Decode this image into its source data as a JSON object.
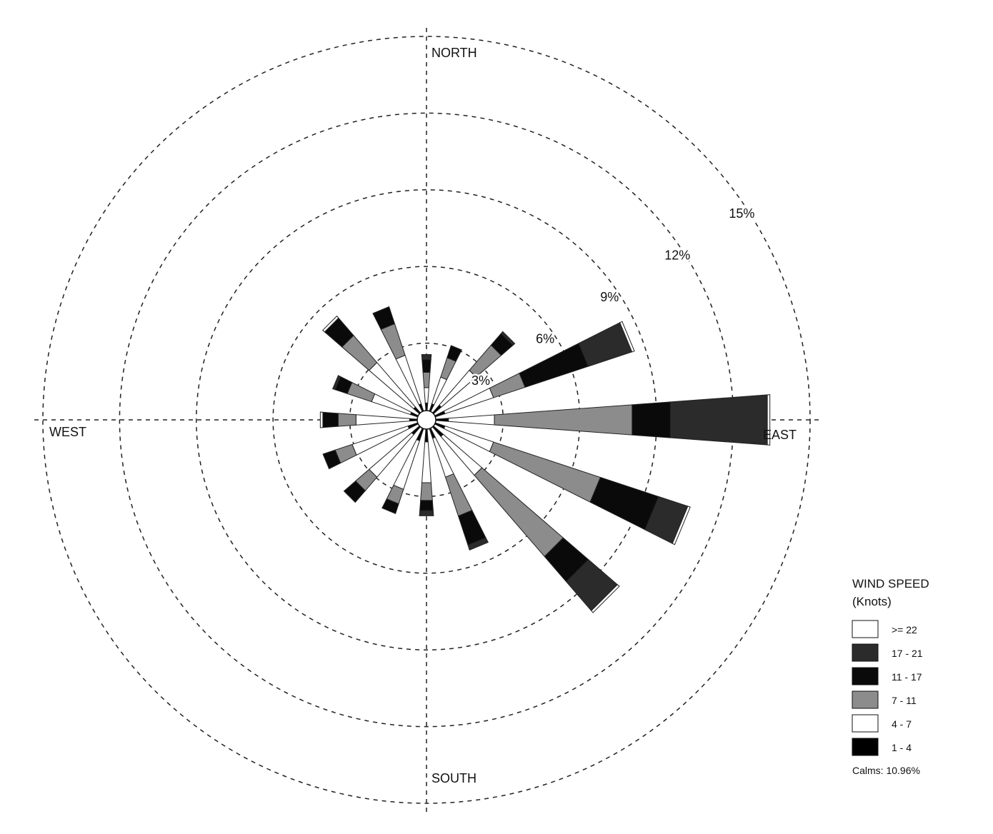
{
  "chart_data": {
    "type": "wind-rose",
    "directions": [
      "N",
      "NNE",
      "NE",
      "ENE",
      "E",
      "ESE",
      "SE",
      "SSE",
      "S",
      "SSW",
      "SW",
      "WSW",
      "W",
      "WNW",
      "NW",
      "NNW"
    ],
    "direction_labels": {
      "north": "NORTH",
      "east": "EAST",
      "south": "SOUTH",
      "west": "WEST"
    },
    "radial_axis": {
      "ticks": [
        3,
        6,
        9,
        12,
        15
      ],
      "tick_labels": [
        "3%",
        "6%",
        "9%",
        "12%",
        "15%"
      ],
      "unit": "%",
      "max": 15
    },
    "legend": {
      "title_line1": "WIND SPEED",
      "title_line2": "(Knots)",
      "placement": "bottom-right",
      "items": [
        {
          "label": ">= 22",
          "color": "#ffffff"
        },
        {
          "label": "17 - 21",
          "color": "#2b2b2b"
        },
        {
          "label": "11 - 17",
          "color": "#0a0a0a"
        },
        {
          "label": "7 - 11",
          "color": "#8c8c8c"
        },
        {
          "label": "4 - 7",
          "color": "#ffffff"
        },
        {
          "label": "1 - 4",
          "color": "#000000"
        }
      ]
    },
    "calms_label": "Calms: 10.96%",
    "bins": [
      "1 - 4",
      "4 - 7",
      "7 - 11",
      "11 - 17",
      "17 - 21",
      ">= 22"
    ],
    "series": [
      {
        "direction": "N",
        "values": [
          0.3,
          0.6,
          0.6,
          0.5,
          0.2,
          0.0
        ]
      },
      {
        "direction": "NNE",
        "values": [
          0.3,
          1.1,
          0.8,
          0.5,
          0.0,
          0.0
        ]
      },
      {
        "direction": "NE",
        "values": [
          0.4,
          1.8,
          1.3,
          0.6,
          0.1,
          0.0
        ]
      },
      {
        "direction": "ENE",
        "values": [
          0.4,
          2.0,
          1.3,
          2.6,
          1.8,
          0.1
        ]
      },
      {
        "direction": "E",
        "values": [
          0.5,
          1.8,
          5.4,
          1.5,
          3.8,
          0.1
        ]
      },
      {
        "direction": "ESE",
        "values": [
          0.4,
          2.0,
          4.4,
          2.4,
          1.2,
          0.1
        ]
      },
      {
        "direction": "SE",
        "values": [
          0.5,
          2.0,
          4.2,
          1.3,
          1.5,
          0.1
        ]
      },
      {
        "direction": "SSE",
        "values": [
          0.4,
          1.6,
          1.6,
          1.2,
          0.2,
          0.0
        ]
      },
      {
        "direction": "S",
        "values": [
          0.5,
          1.6,
          0.7,
          0.4,
          0.2,
          0.0
        ]
      },
      {
        "direction": "SSW",
        "values": [
          0.5,
          2.0,
          0.6,
          0.4,
          0.0,
          0.0
        ]
      },
      {
        "direction": "SW",
        "values": [
          0.4,
          2.2,
          0.7,
          0.6,
          0.0,
          0.0
        ]
      },
      {
        "direction": "WSW",
        "values": [
          0.4,
          2.3,
          0.7,
          0.5,
          0.0,
          0.0
        ]
      },
      {
        "direction": "W",
        "values": [
          0.3,
          2.1,
          0.7,
          0.6,
          0.0,
          0.1
        ]
      },
      {
        "direction": "WNW",
        "values": [
          0.3,
          1.6,
          1.0,
          0.5,
          0.1,
          0.0
        ]
      },
      {
        "direction": "NW",
        "values": [
          0.3,
          2.3,
          1.4,
          0.9,
          0.0,
          0.1
        ]
      },
      {
        "direction": "NNW",
        "values": [
          0.3,
          2.0,
          1.3,
          0.7,
          0.0,
          0.0
        ]
      }
    ],
    "grid": true
  }
}
